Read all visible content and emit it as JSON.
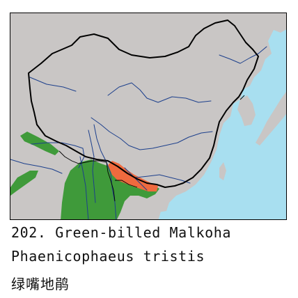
{
  "map": {
    "colors": {
      "sea": "#a8dff0",
      "land": "#c9c6c5",
      "range_green": "#3f9a3a",
      "range_orange": "#ef6a3e",
      "river": "#1c3f8c",
      "border": "#000000"
    }
  },
  "caption": {
    "title": "202. Green-billed Malkoha",
    "scientific_name": "Phaenicophaeus tristis",
    "chinese_name": "绿嘴地鹃"
  }
}
